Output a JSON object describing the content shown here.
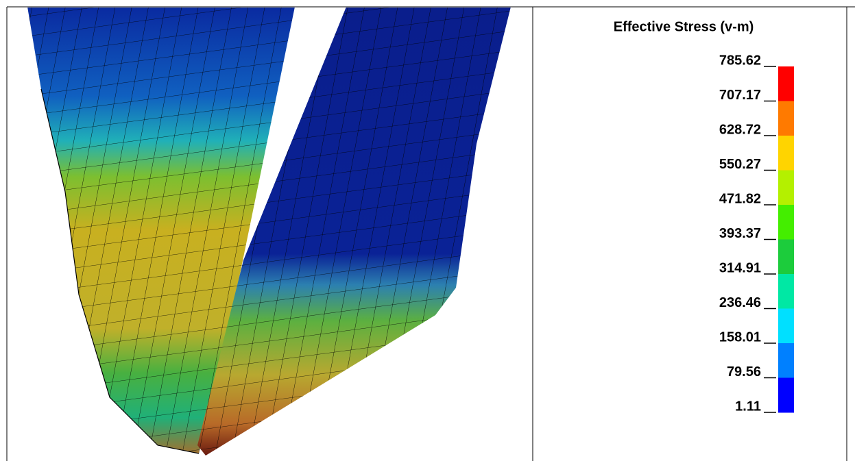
{
  "legend": {
    "title": "Effective Stress (v-m)",
    "labels": [
      "785.62",
      "707.17",
      "628.72",
      "550.27",
      "471.82",
      "393.37",
      "314.91",
      "236.46",
      "158.01",
      "79.56",
      "1.11"
    ],
    "colors": [
      "#ff0000",
      "#ff7a00",
      "#ffd400",
      "#b4f000",
      "#44ee00",
      "#1ccc3c",
      "#00e8a4",
      "#00e0ff",
      "#0080ff",
      "#0000ff"
    ]
  }
}
